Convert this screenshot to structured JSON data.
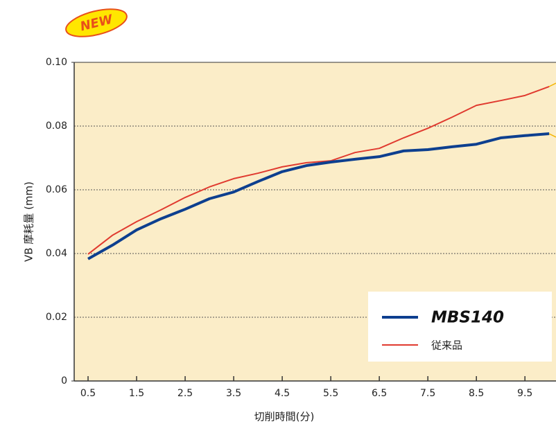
{
  "chart_data": {
    "type": "line",
    "badge": "NEW",
    "x_label": "切削時間(分)",
    "y_label": "VB 摩耗量 (mm)",
    "x": [
      0.5,
      1.0,
      1.5,
      2.0,
      2.5,
      3.0,
      3.5,
      4.0,
      4.5,
      5.0,
      5.5,
      6.0,
      6.5,
      7.0,
      7.5,
      8.0,
      8.5,
      9.0,
      9.5,
      10.0
    ],
    "series": [
      {
        "name": "MBS140",
        "color": "#0d3f8f",
        "width": 4,
        "values": [
          0.0383,
          0.0426,
          0.0474,
          0.0509,
          0.0539,
          0.0572,
          0.0593,
          0.0626,
          0.0657,
          0.0676,
          0.0687,
          0.0696,
          0.0704,
          0.0722,
          0.0726,
          0.0735,
          0.0743,
          0.0763,
          0.077,
          0.0776
        ]
      },
      {
        "name": "従来品",
        "color": "#e03a2f",
        "width": 2,
        "values": [
          0.0398,
          0.0457,
          0.05,
          0.0537,
          0.0576,
          0.0609,
          0.0635,
          0.0652,
          0.0672,
          0.0685,
          0.0691,
          0.0717,
          0.073,
          0.0763,
          0.0793,
          0.0828,
          0.0865,
          0.088,
          0.0896,
          0.0924
        ]
      }
    ],
    "xlim": [
      0.214,
      10.14
    ],
    "ylim": [
      0,
      0.1
    ],
    "xticks": [
      0.5,
      1.5,
      2.5,
      3.5,
      4.5,
      5.5,
      6.5,
      7.5,
      8.5,
      9.5
    ],
    "yticks": [
      0,
      0.02,
      0.04,
      0.06,
      0.08,
      {
        "value": 0.1,
        "label": "0.10"
      }
    ],
    "grid": true,
    "background": "#fbedc8"
  }
}
